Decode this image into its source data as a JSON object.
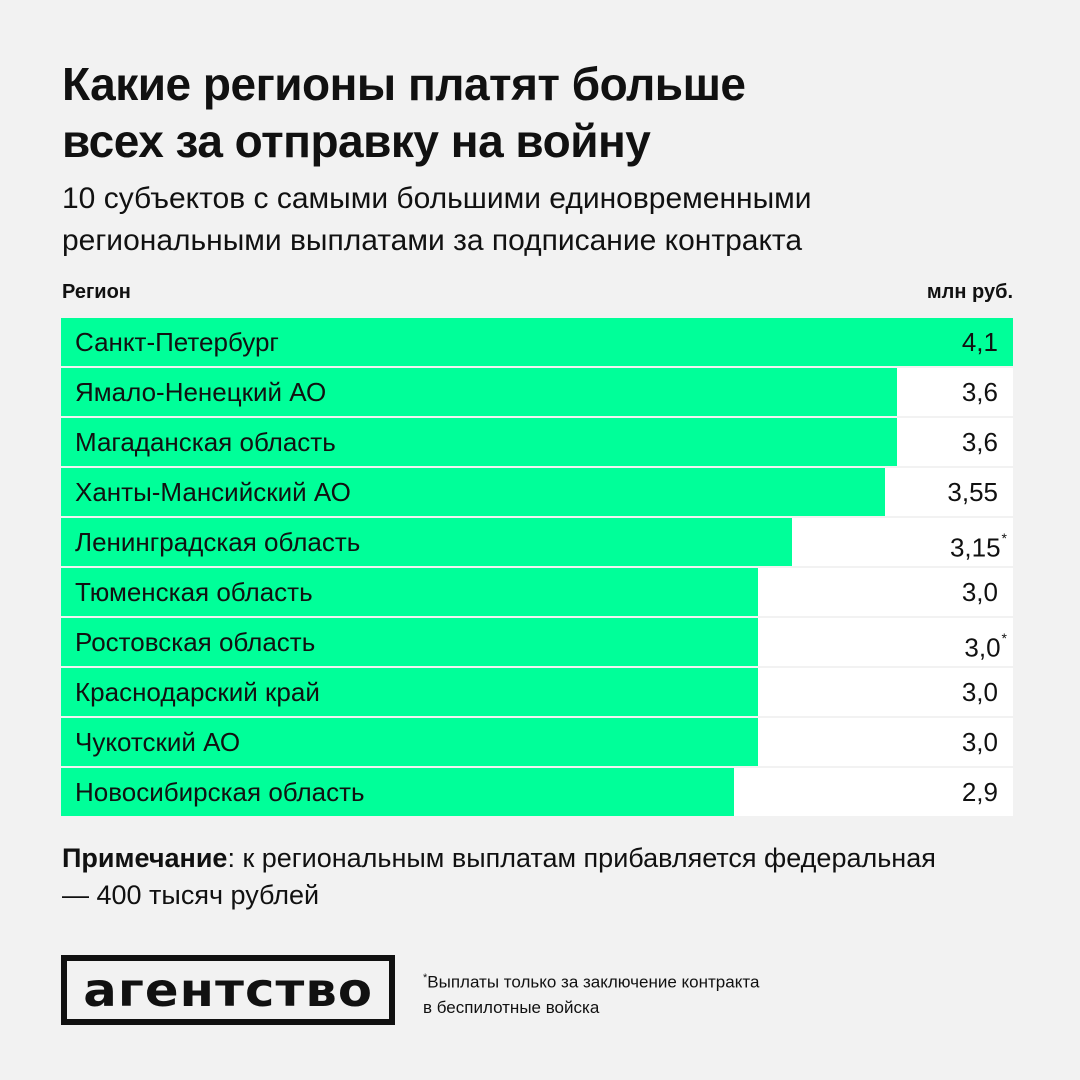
{
  "title_line1": "Какие регионы платят больше",
  "title_line2": "всех за отправку на войну",
  "subtitle_line1": "10 субъектов с самыми большими единовременными",
  "subtitle_line2": "региональными выплатами за подписание контракта",
  "col_left": "Регион",
  "col_right": "млн руб.",
  "chart_data": {
    "type": "bar",
    "orientation": "horizontal",
    "title": "Какие регионы платят больше всех за отправку на войну",
    "xlabel": "млн руб.",
    "ylabel": "Регион",
    "xlim": [
      0,
      4.1
    ],
    "grid": false,
    "categories": [
      "Санкт-Петербург",
      "Ямало-Ненецкий АО",
      "Магаданская область",
      "Ханты-Мансийский АО",
      "Ленинградская область",
      "Тюменская область",
      "Ростовская область",
      "Краснодарский край",
      "Чукотский АО",
      "Новосибирская область"
    ],
    "values": [
      4.1,
      3.6,
      3.6,
      3.55,
      3.15,
      3.0,
      3.0,
      3.0,
      3.0,
      2.9
    ],
    "value_labels": [
      "4,1",
      "3,6",
      "3,6",
      "3,55",
      "3,15",
      "3,0",
      "3,0",
      "3,0",
      "3,0",
      "2,9"
    ],
    "footnote_marks": [
      "",
      "",
      "",
      "",
      "*",
      "",
      "*",
      "",
      "",
      ""
    ],
    "bar_color": "#00ff99"
  },
  "note_label": "Примечание",
  "note_text": ": к региональным выплатам прибавляется федеральная — 400 тысяч рублей",
  "logo_text": "агентство",
  "footnote_mark": "*",
  "footnote_text": "Выплаты только за заключение контракта",
  "footnote_text2": "в беспилотные войска"
}
